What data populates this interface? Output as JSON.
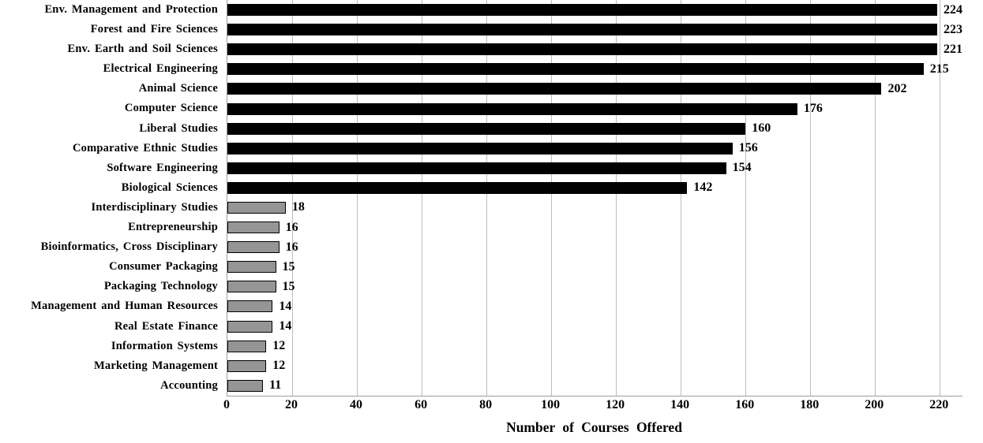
{
  "chart_data": {
    "type": "bar",
    "orientation": "horizontal",
    "title": "",
    "xlabel": "Number of Courses Offered",
    "ylabel": "",
    "xlim": [
      0,
      227
    ],
    "xticks": [
      0,
      20,
      40,
      60,
      80,
      100,
      120,
      140,
      160,
      180,
      200,
      220
    ],
    "grid": true,
    "legend": "none",
    "categories": [
      "Env. Management and Protection",
      "Forest and Fire Sciences",
      "Env. Earth and Soil Sciences",
      "Electrical Engineering",
      "Animal Science",
      "Computer Science",
      "Liberal Studies",
      "Comparative Ethnic Studies",
      "Software Engineering",
      "Biological Sciences",
      "Interdisciplinary Studies",
      "Entrepreneurship",
      "Bioinformatics, Cross Disciplinary",
      "Consumer Packaging",
      "Packaging Technology",
      "Management and Human Resources",
      "Real Estate Finance",
      "Information Systems",
      "Marketing Management",
      "Accounting"
    ],
    "values": [
      224,
      223,
      221,
      215,
      202,
      176,
      160,
      156,
      154,
      142,
      18,
      16,
      16,
      15,
      15,
      14,
      14,
      12,
      12,
      11
    ],
    "bar_colors": [
      "black",
      "black",
      "black",
      "black",
      "black",
      "black",
      "black",
      "black",
      "black",
      "black",
      "gray",
      "gray",
      "gray",
      "gray",
      "gray",
      "gray",
      "gray",
      "gray",
      "gray",
      "gray"
    ],
    "colors": {
      "black_bar": "#000000",
      "gray_bar": "#959595",
      "gray_bar_border": "#000000",
      "gridline": "#bdbdbd",
      "axis_line": "#9c9c9c",
      "text": "#000000"
    }
  }
}
